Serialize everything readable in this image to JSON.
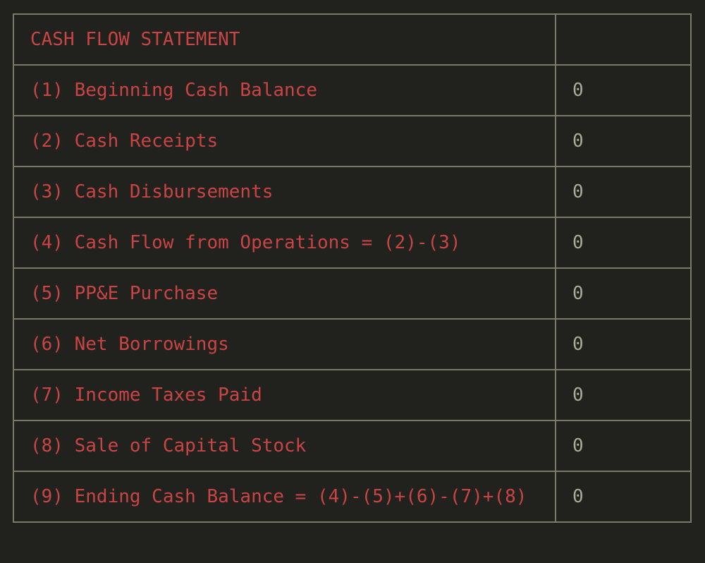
{
  "table": {
    "header": {
      "label": "CASH FLOW STATEMENT",
      "value": ""
    },
    "rows": [
      {
        "label": "(1) Beginning Cash Balance",
        "value": "0"
      },
      {
        "label": "(2) Cash Receipts",
        "value": "0"
      },
      {
        "label": "(3) Cash Disbursements",
        "value": "0"
      },
      {
        "label": "(4) Cash Flow from Operations = (2)-(3)",
        "value": "0"
      },
      {
        "label": "(5) PP&E Purchase",
        "value": "0"
      },
      {
        "label": "(6) Net Borrowings",
        "value": "0"
      },
      {
        "label": "(7) Income Taxes Paid",
        "value": "0"
      },
      {
        "label": "(8) Sale of Capital Stock",
        "value": "0"
      },
      {
        "label": "(9) Ending Cash Balance = (4)-(5)+(6)-(7)+(8)",
        "value": "0"
      }
    ]
  },
  "colors": {
    "background": "#21211d",
    "label_text": "#c94545",
    "value_text": "#a9aa98",
    "border": "#7a7a6a"
  }
}
